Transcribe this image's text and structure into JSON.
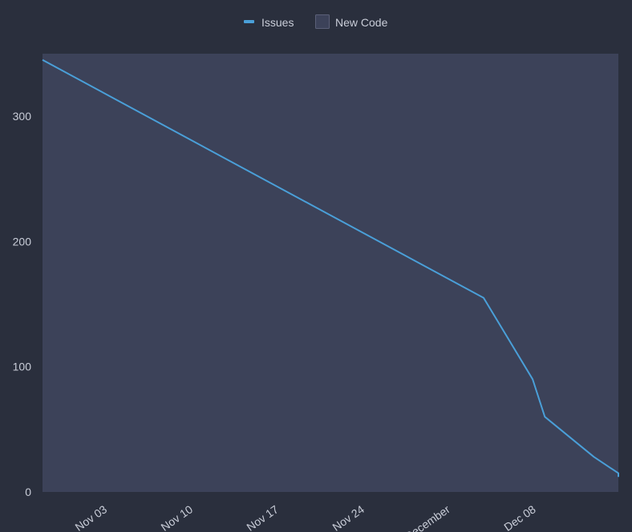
{
  "legend": {
    "issues_label": "Issues",
    "new_code_label": "New Code"
  },
  "colors": {
    "background": "#2a2f3d",
    "new_code_area": "#3c4259",
    "issues_line": "#4a9fd8",
    "text": "#c9cdd8"
  },
  "chart_data": {
    "type": "line",
    "xlabel": "",
    "ylabel": "",
    "x_range": [
      "2023-10-29",
      "2023-12-15"
    ],
    "ylim": [
      0,
      350
    ],
    "y_ticks": [
      0,
      100,
      200,
      300
    ],
    "x_ticks": [
      {
        "label": "Nov 03",
        "date": "2023-11-03"
      },
      {
        "label": "Nov 10",
        "date": "2023-11-10"
      },
      {
        "label": "Nov 17",
        "date": "2023-11-17"
      },
      {
        "label": "Nov 24",
        "date": "2023-11-24"
      },
      {
        "label": "December",
        "date": "2023-12-01"
      },
      {
        "label": "Dec 08",
        "date": "2023-12-08"
      }
    ],
    "new_code_period": [
      "2023-10-29",
      "2023-12-15"
    ],
    "series": [
      {
        "name": "Issues",
        "points": [
          {
            "x": "2023-10-29",
            "y": 345
          },
          {
            "x": "2023-12-04",
            "y": 155
          },
          {
            "x": "2023-12-08",
            "y": 90
          },
          {
            "x": "2023-12-09",
            "y": 60
          },
          {
            "x": "2023-12-13",
            "y": 28
          },
          {
            "x": "2023-12-15",
            "y": 15
          },
          {
            "x": "2023-12-15",
            "y": 12
          }
        ]
      }
    ],
    "grid": false,
    "legend_position": "top-center"
  }
}
